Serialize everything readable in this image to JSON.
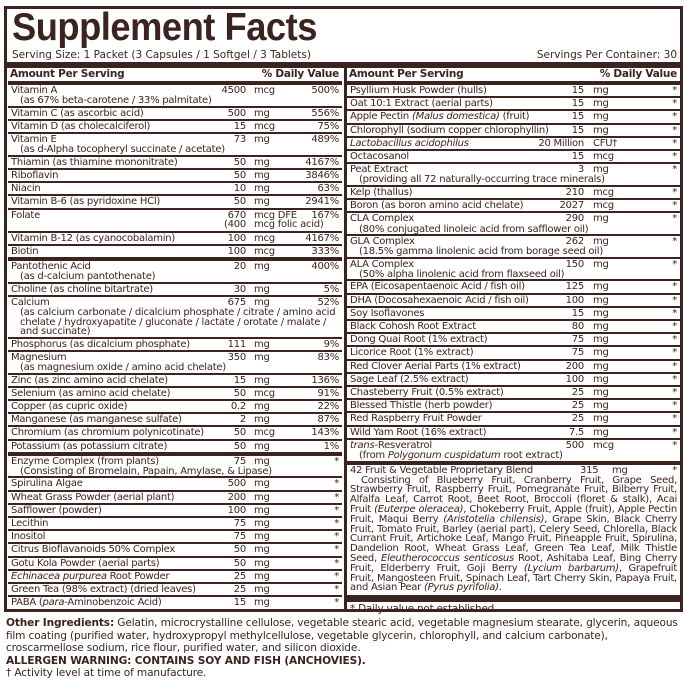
{
  "title": "Supplement Facts",
  "serving_size": "Serving Size: 1 Packet (3 Capsules / 1 Softgel / 3 Tablets)",
  "servings_per_container": "Servings Per Container: 30",
  "header": {
    "amount": "Amount Per Serving",
    "dv": "% Daily Value"
  },
  "colors": {
    "brand": "#3d2320"
  },
  "left_rows": [
    {
      "name": [
        "Vitamin A"
      ],
      "sub": [
        "(as 67% beta-carotene / 33% palmitate)"
      ],
      "amount": "4500",
      "unit": "mcg",
      "dv": "500%"
    },
    {
      "name": [
        "Vitamin C (as ascorbic acid)"
      ],
      "amount": "500",
      "unit": "mg",
      "dv": "556%"
    },
    {
      "name": [
        "Vitamin D (as cholecalciferol)"
      ],
      "amount": "15",
      "unit": "mcg",
      "dv": "75%"
    },
    {
      "name": [
        "Vitamin E"
      ],
      "sub": [
        "(as d-Alpha tocopheryl succinate / acetate)"
      ],
      "amount": "73",
      "unit": "mg",
      "dv": "489%"
    },
    {
      "name": [
        "Thiamin (as thiamine mononitrate)"
      ],
      "amount": "50",
      "unit": "mg",
      "dv": "4167%"
    },
    {
      "name": [
        "Riboflavin"
      ],
      "amount": "50",
      "unit": "mg",
      "dv": "3846%"
    },
    {
      "name": [
        "Niacin"
      ],
      "amount": "10",
      "unit": "mg",
      "dv": "63%"
    },
    {
      "name": [
        "Vitamin B-6 (as pyridoxine HCl)"
      ],
      "amount": "50",
      "unit": "mg",
      "dv": "2941%"
    },
    {
      "name": [
        "Folate"
      ],
      "amount": "670\n(400",
      "unit": "mcg DFE\nmcg folic acid)",
      "dv": "167%"
    },
    {
      "name": [
        "Vitamin B-12 (as cyanocobalamin)"
      ],
      "amount": "100",
      "unit": "mcg",
      "dv": "4167%"
    },
    {
      "name": [
        "Biotin"
      ],
      "amount": "100",
      "unit": "mcg",
      "dv": "333%",
      "thick": true
    },
    {
      "name": [
        "Pantothenic Acid"
      ],
      "sub": [
        "(as d-calcium pantothenate)"
      ],
      "amount": "20",
      "unit": "mg",
      "dv": "400%"
    },
    {
      "name": [
        "Choline (as choline bitartrate)"
      ],
      "amount": "30",
      "unit": "mg",
      "dv": "5%"
    },
    {
      "name": [
        "Calcium"
      ],
      "sub": [
        "(as calcium carbonate / dicalcium phosphate / citrate / amino acid chelate / hydroxyapatite / gluconate / lactate / orotate / malate / and succinate)"
      ],
      "amount": "675",
      "unit": "mg",
      "dv": "52%"
    },
    {
      "name": [
        "Phosphorus (as dicalcium phosphate)"
      ],
      "amount": "111",
      "unit": "mg",
      "dv": "9%"
    },
    {
      "name": [
        "Magnesium"
      ],
      "sub": [
        "(as magnesium oxide / amino acid chelate)"
      ],
      "amount": "350",
      "unit": "mg",
      "dv": "83%"
    },
    {
      "name": [
        "Zinc (as zinc amino acid chelate)"
      ],
      "amount": "15",
      "unit": "mg",
      "dv": "136%"
    },
    {
      "name": [
        "Selenium (as amino acid chelate)"
      ],
      "amount": "50",
      "unit": "mcg",
      "dv": "91%"
    },
    {
      "name": [
        "Copper (as cupric oxide)"
      ],
      "amount": "0.2",
      "unit": "mg",
      "dv": "22%"
    },
    {
      "name": [
        "Manganese (as manganese sulfate)"
      ],
      "amount": "2",
      "unit": "mg",
      "dv": "87%"
    },
    {
      "name": [
        "Chromium (as chromium polynicotinate)"
      ],
      "amount": "50",
      "unit": "mcg",
      "dv": "143%"
    },
    {
      "name": [
        "Potassium (as potassium citrate)"
      ],
      "amount": "50",
      "unit": "mg",
      "dv": "1%",
      "thick": true
    },
    {
      "name": [
        "Enzyme Complex (from plants)"
      ],
      "sub": [
        "(Consisting of Bromelain, Papain, Amylase, & Lipase)"
      ],
      "amount": "75",
      "unit": "mg",
      "dv": "*"
    },
    {
      "name": [
        "Spirulina Algae"
      ],
      "amount": "500",
      "unit": "mg",
      "dv": "*"
    },
    {
      "name": [
        "Wheat Grass Powder (aerial plant)"
      ],
      "amount": "200",
      "unit": "mg",
      "dv": "*"
    },
    {
      "name": [
        "Safflower (powder)"
      ],
      "amount": "100",
      "unit": "mg",
      "dv": "*"
    },
    {
      "name": [
        "Lecithin"
      ],
      "amount": "75",
      "unit": "mg",
      "dv": "*"
    },
    {
      "name": [
        "Inositol"
      ],
      "amount": "75",
      "unit": "mg",
      "dv": "*"
    },
    {
      "name": [
        "Citrus Bioflavanoids 50% Complex"
      ],
      "amount": "50",
      "unit": "mg",
      "dv": "*"
    },
    {
      "name": [
        "Gotu Kola Powder (aerial parts)"
      ],
      "amount": "50",
      "unit": "mg",
      "dv": "*"
    },
    {
      "name": [
        {
          "i": "Echinacea purpurea"
        },
        " Root Powder"
      ],
      "amount": "25",
      "unit": "mg",
      "dv": "*"
    },
    {
      "name": [
        "Green Tea (98% extract) (dried leaves)"
      ],
      "amount": "25",
      "unit": "mg",
      "dv": "*"
    },
    {
      "name": [
        "PABA (",
        {
          "i": "para"
        },
        "-Aminobenzoic Acid)"
      ],
      "amount": "15",
      "unit": "mg",
      "dv": "*",
      "last": true
    }
  ],
  "right_rows": [
    {
      "name": [
        "Psyllium Husk Powder (hulls)"
      ],
      "amount": "15",
      "unit": "mg",
      "dv": "*"
    },
    {
      "name": [
        "Oat 10:1 Extract (aerial parts)"
      ],
      "amount": "15",
      "unit": "mg",
      "dv": "*"
    },
    {
      "name": [
        "Apple Pectin ",
        {
          "i": "(Malus domestica)"
        },
        " (fruit)"
      ],
      "amount": "15",
      "unit": "mg",
      "dv": "*"
    },
    {
      "name": [
        "Chlorophyll (sodium copper chlorophyllin)"
      ],
      "amount": "15",
      "unit": "mg",
      "dv": "*"
    },
    {
      "name": [
        {
          "i": "Lactobacillus acidophilus"
        }
      ],
      "amount": "20 Million",
      "unit": "CFU†",
      "dv": "*"
    },
    {
      "name": [
        "Octacosanol"
      ],
      "amount": "15",
      "unit": "mcg",
      "dv": "*"
    },
    {
      "name": [
        "Peat Extract"
      ],
      "sub": [
        "(providing all 72 naturally-occurring trace minerals)"
      ],
      "amount": "3",
      "unit": "mg",
      "dv": "*"
    },
    {
      "name": [
        "Kelp (thallus)"
      ],
      "amount": "210",
      "unit": "mcg",
      "dv": "*"
    },
    {
      "name": [
        "Boron (as boron amino acid chelate)"
      ],
      "amount": "2027",
      "unit": "mcg",
      "dv": "*"
    },
    {
      "name": [
        "CLA Complex"
      ],
      "sub": [
        "(80% conjugated linoleic acid from safflower oil)"
      ],
      "amount": "290",
      "unit": "mg",
      "dv": "*"
    },
    {
      "name": [
        "GLA Complex"
      ],
      "sub": [
        "(18.5% gamma linolenic acid from borage seed oil)"
      ],
      "amount": "262",
      "unit": "mg",
      "dv": "*"
    },
    {
      "name": [
        "ALA Complex"
      ],
      "sub": [
        "(50% alpha linolenic acid from flaxseed oil)"
      ],
      "amount": "150",
      "unit": "mg",
      "dv": "*"
    },
    {
      "name": [
        "EPA (Eicosapentaenoic Acid / fish oil)"
      ],
      "amount": "125",
      "unit": "mg",
      "dv": "*"
    },
    {
      "name": [
        "DHA (Docosahexaenoic Acid / fish oil)"
      ],
      "amount": "100",
      "unit": "mg",
      "dv": "*"
    },
    {
      "name": [
        "Soy Isoflavones"
      ],
      "amount": "15",
      "unit": "mg",
      "dv": "*"
    },
    {
      "name": [
        "Black Cohosh Root Extract"
      ],
      "amount": "80",
      "unit": "mg",
      "dv": "*"
    },
    {
      "name": [
        "Dong Quai Root (1% extract)"
      ],
      "amount": "75",
      "unit": "mg",
      "dv": "*"
    },
    {
      "name": [
        "Licorice Root (1% extract)"
      ],
      "amount": "75",
      "unit": "mg",
      "dv": "*"
    },
    {
      "name": [
        "Red Clover Aerial Parts (1% extract)"
      ],
      "amount": "200",
      "unit": "mg",
      "dv": "*"
    },
    {
      "name": [
        "Sage Leaf (2.5% extract)"
      ],
      "amount": "100",
      "unit": "mg",
      "dv": "*"
    },
    {
      "name": [
        "Chasteberry Fruit (0.5% extract)"
      ],
      "amount": "25",
      "unit": "mg",
      "dv": "*"
    },
    {
      "name": [
        "Blessed Thistle (herb powder)"
      ],
      "amount": "25",
      "unit": "mg",
      "dv": "*"
    },
    {
      "name": [
        "Red Raspberry Fruit Powder"
      ],
      "amount": "25",
      "unit": "mg",
      "dv": "*"
    },
    {
      "name": [
        "Wild Yam Root (16% extract)"
      ],
      "amount": "7.5",
      "unit": "mg",
      "dv": "*"
    },
    {
      "name": [
        {
          "i": "trans"
        },
        "-Resveratrol"
      ],
      "sub": [
        "(from ",
        {
          "i": "Polygonum cuspidatum"
        },
        " root extract)"
      ],
      "amount": "500",
      "unit": "mcg",
      "dv": "*",
      "thick": true
    }
  ],
  "blend": {
    "name": "42 Fruit & Vegetable Proprietary Blend",
    "amount": "315",
    "unit": "mg",
    "dv": "*",
    "text": [
      "Consisting of Blueberry Fruit, Cranberry Fruit, Grape Seed, Strawberry Fruit, Raspberry Fruit, Pomegranate Fruit, Bilberry Fruit, Alfalfa Leaf, Carrot Root, Beet Root, Broccoli (floret & stalk), Acai Fruit ",
      {
        "i": "(Euterpe oleracea)"
      },
      ", Chokeberry Fruit, Apple (fruit), Apple Pectin Fruit, Maqui Berry ",
      {
        "i": "(Aristotelia chilensis)"
      },
      ", Grape Skin, Black Cherry Fruit, Tomato Fruit, Barley (aerial part), Celery Seed, Chlorella, Black Currant Fruit, Artichoke Leaf, Mango Fruit, Pineapple Fruit, Spirulina, Dandelion Root, Wheat Grass Leaf, Green Tea Leaf, Milk Thistle Seed, ",
      {
        "i": "Eleutherococcus senticosus"
      },
      " Root, Ashitaba Leaf, Bing Cherry Fruit, Elderberry Fruit, Goji Berry ",
      {
        "i": "(Lycium barbarum)"
      },
      ", Grapefruit Fruit, Mangosteen Fruit, Spinach Leaf, Tart Cherry Skin, Papaya Fruit, and Asian Pear ",
      {
        "i": "(Pyrus pyrifolia)"
      },
      "."
    ]
  },
  "dv_note": "* Daily value not established.",
  "other_ingredients": {
    "label": "Other Ingredients:",
    "text": " Gelatin, microcrystalline cellulose, vegetable stearic acid, vegetable magnesium stearate, glycerin, aqueous film coating (purified water, hydroxypropyl methylcellulose, vegetable glycerin, chlorophyll, and calcium carbonate), croscarmellose sodium, rice flour, purified water, and silicon dioxide."
  },
  "allergen_warning": "ALLERGEN WARNING: CONTAINS SOY AND FISH (ANCHOVIES).",
  "activity_note": "† Activity level at time of manufacture."
}
